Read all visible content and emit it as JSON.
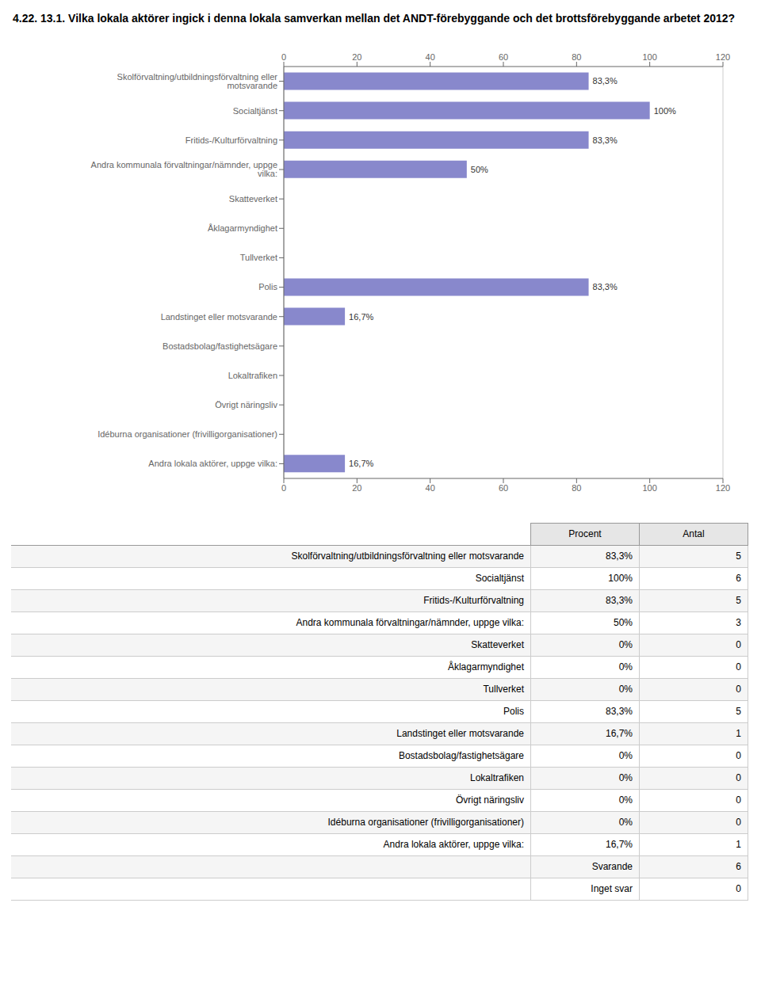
{
  "chart_data": {
    "type": "bar",
    "orientation": "horizontal",
    "title": "4.22. 13.1. Vilka lokala aktörer ingick i denna lokala samverkan mellan det ANDT-förebyggande och det brottsförebyggande arbetet 2012?",
    "categories": [
      "Skolförvaltning/utbildningsförvaltning eller motsvarande",
      "Socialtjänst",
      "Fritids-/Kulturförvaltning",
      "Andra kommunala förvaltningar/nämnder, uppge vilka:",
      "Skatteverket",
      "Åklagarmyndighet",
      "Tullverket",
      "Polis",
      "Landstinget eller motsvarande",
      "Bostadsbolag/fastighetsägare",
      "Lokaltrafiken",
      "Övrigt näringsliv",
      "Idéburna organisationer (frivilligorganisationer)",
      "Andra lokala aktörer, uppge vilka:"
    ],
    "values": [
      83.3,
      100.0,
      83.3,
      50.0,
      0.0,
      0.0,
      0.0,
      83.3,
      16.7,
      0.0,
      0.0,
      0.0,
      0.0,
      16.7
    ],
    "data_labels": true,
    "value_labels": [
      "83,3%",
      "100%",
      "83,3%",
      "50%",
      null,
      null,
      null,
      "83,3%",
      "16,7%",
      null,
      null,
      null,
      null,
      "16,7%"
    ],
    "color": "#8888cc",
    "xlim": [
      0,
      120
    ],
    "xticks": [
      0,
      20,
      40,
      60,
      80,
      100,
      120
    ],
    "grid": true
  },
  "table": {
    "columns": [
      "Procent",
      "Antal"
    ],
    "rows": [
      {
        "category": "Skolförvaltning/utbildningsförvaltning eller motsvarande",
        "procent": "83,3%",
        "antal": 5
      },
      {
        "category": "Socialtjänst",
        "procent": "100%",
        "antal": 6
      },
      {
        "category": "Fritids-/Kulturförvaltning",
        "procent": "83,3%",
        "antal": 5
      },
      {
        "category": "Andra kommunala förvaltningar/nämnder, uppge vilka:",
        "procent": "50%",
        "antal": 3
      },
      {
        "category": "Skatteverket",
        "procent": "0%",
        "antal": 0
      },
      {
        "category": "Åklagarmyndighet",
        "procent": "0%",
        "antal": 0
      },
      {
        "category": "Tullverket",
        "procent": "0%",
        "antal": 0
      },
      {
        "category": "Polis",
        "procent": "83,3%",
        "antal": 5
      },
      {
        "category": "Landstinget eller motsvarande",
        "procent": "16,7%",
        "antal": 1
      },
      {
        "category": "Bostadsbolag/fastighetsägare",
        "procent": "0%",
        "antal": 0
      },
      {
        "category": "Lokaltrafiken",
        "procent": "0%",
        "antal": 0
      },
      {
        "category": "Övrigt näringsliv",
        "procent": "0%",
        "antal": 0
      },
      {
        "category": "Idéburna organisationer (frivilligorganisationer)",
        "procent": "0%",
        "antal": 0
      },
      {
        "category": "Andra lokala aktörer, uppge vilka:",
        "procent": "16,7%",
        "antal": 1
      }
    ],
    "summary": [
      {
        "label": "Svarande",
        "antal": 6
      },
      {
        "label": "Inget svar",
        "antal": 0
      }
    ]
  }
}
